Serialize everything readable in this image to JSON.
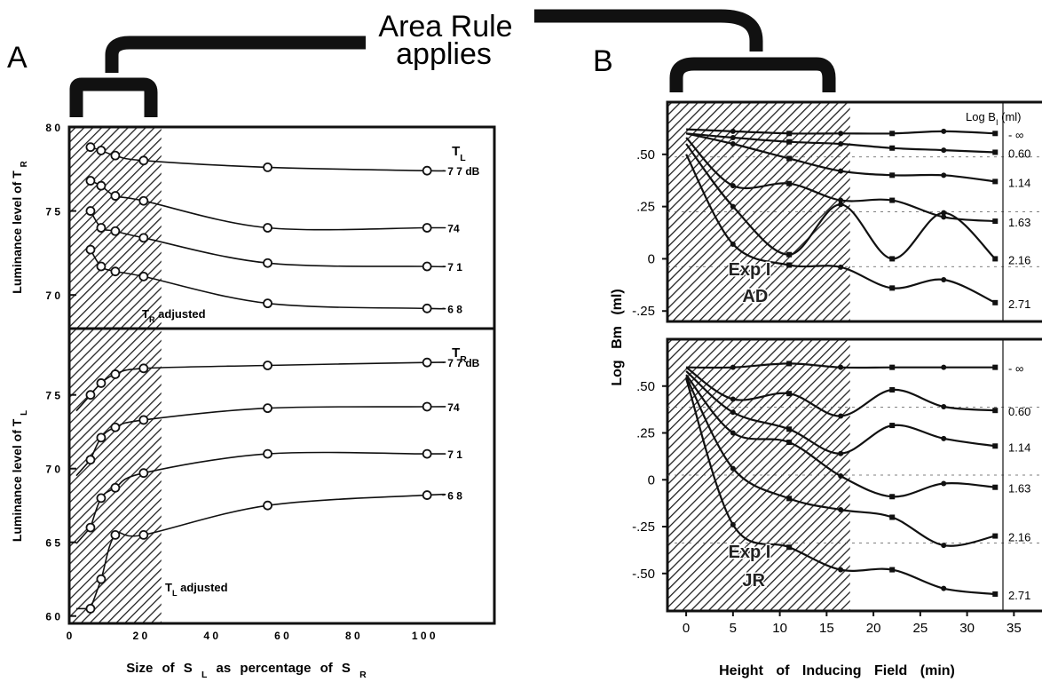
{
  "header": {
    "title_line1": "Area Rule",
    "title_line2": "applies",
    "panel_a": "A",
    "panel_b": "B"
  },
  "chart_data": [
    {
      "panel": "A",
      "type": "line",
      "subplot": "top",
      "ylabel_main": "Luminance level of T",
      "ylabel_sub": "R",
      "xlim": [
        0,
        120
      ],
      "ylim": [
        68,
        80
      ],
      "yticks": [
        70,
        75,
        80
      ],
      "legend_main": "T",
      "legend_sub": "L",
      "annotation_main": "T",
      "annotation_sub": "R",
      "annotation_text": "adjusted",
      "shaded_x": [
        0,
        26
      ],
      "series": [
        {
          "name": "7 7 dB",
          "x": [
            6,
            9,
            13,
            21,
            56,
            101
          ],
          "y": [
            78.8,
            78.6,
            78.3,
            78.0,
            77.6,
            77.4
          ]
        },
        {
          "name": "74",
          "x": [
            6,
            9,
            13,
            21,
            56,
            101
          ],
          "y": [
            76.8,
            76.5,
            75.9,
            75.6,
            74.0,
            74.0
          ]
        },
        {
          "name": "7 1",
          "x": [
            6,
            9,
            13,
            21,
            56,
            101
          ],
          "y": [
            75.0,
            74.0,
            73.8,
            73.4,
            71.9,
            71.7
          ]
        },
        {
          "name": "6 8",
          "x": [
            6,
            9,
            13,
            21,
            56,
            101
          ],
          "y": [
            72.7,
            71.7,
            71.4,
            71.1,
            69.5,
            69.2
          ]
        }
      ]
    },
    {
      "panel": "A",
      "type": "line",
      "subplot": "bottom",
      "ylabel_main": "Luminance level of T",
      "ylabel_sub": "L",
      "xlabel_main": "Size of S",
      "xlabel_sub1": "L",
      "xlabel_mid": "as percentage of S",
      "xlabel_sub2": "R",
      "xlim": [
        0,
        120
      ],
      "ylim": [
        59.5,
        79.5
      ],
      "xticks": [
        0,
        20,
        40,
        60,
        80,
        100
      ],
      "yticks": [
        60,
        65,
        70,
        75
      ],
      "legend_main": "T",
      "legend_sub": "R",
      "annotation_main": "T",
      "annotation_sub": "L",
      "annotation_text": "adjusted",
      "shaded_x": [
        0,
        26
      ],
      "series": [
        {
          "name": "7 7 dB",
          "x": [
            6,
            9,
            13,
            21,
            56,
            101
          ],
          "y": [
            75.0,
            75.8,
            76.4,
            76.8,
            77.0,
            77.2
          ]
        },
        {
          "name": "74",
          "x": [
            6,
            9,
            13,
            21,
            56,
            101
          ],
          "y": [
            70.6,
            72.1,
            72.8,
            73.3,
            74.1,
            74.2
          ]
        },
        {
          "name": "7 1",
          "x": [
            6,
            9,
            13,
            21,
            56,
            101
          ],
          "y": [
            66.0,
            68.0,
            68.7,
            69.7,
            71.0,
            71.0
          ]
        },
        {
          "name": "6 8",
          "x": [
            6,
            9,
            13,
            21,
            56,
            101
          ],
          "y": [
            60.5,
            62.5,
            65.5,
            65.5,
            67.5,
            68.2
          ]
        }
      ]
    },
    {
      "panel": "B",
      "type": "line",
      "subplot": "top",
      "ylabel": "Log Bm (ml)",
      "legend_title_main": "Log B",
      "legend_title_sub": "I",
      "legend_title_unit": "(ml)",
      "annotation_line1": "Exp I",
      "annotation_line2": "AD",
      "xlim": [
        -2,
        38
      ],
      "ylim": [
        -0.3,
        0.75
      ],
      "yticks": [
        ".50",
        ".25",
        "0",
        "-.25"
      ],
      "yvals": [
        0.5,
        0.25,
        0,
        -0.25
      ],
      "shaded_x": [
        -2,
        17.5
      ],
      "series": [
        {
          "name": "- ∞",
          "x": [
            0,
            5,
            11,
            16.5,
            22,
            27.5,
            33
          ],
          "y": [
            0.62,
            0.61,
            0.6,
            0.6,
            0.6,
            0.61,
            0.6
          ]
        },
        {
          "name": "0.60",
          "x": [
            0,
            5,
            11,
            16.5,
            22,
            27.5,
            33
          ],
          "y": [
            0.6,
            0.58,
            0.56,
            0.55,
            0.53,
            0.52,
            0.51
          ]
        },
        {
          "name": "1.14",
          "x": [
            0,
            5,
            11,
            16.5,
            22,
            27.5,
            33
          ],
          "y": [
            0.6,
            0.55,
            0.48,
            0.42,
            0.4,
            0.4,
            0.37
          ]
        },
        {
          "name": "1.63",
          "x": [
            0,
            5,
            11,
            16.5,
            22,
            27.5,
            33
          ],
          "y": [
            0.58,
            0.35,
            0.36,
            0.28,
            0.28,
            0.2,
            0.18
          ]
        },
        {
          "name": "2.16",
          "x": [
            0,
            5,
            11,
            16.5,
            22,
            27.5,
            33
          ],
          "y": [
            0.55,
            0.25,
            0.02,
            0.26,
            0.0,
            0.22,
            0.0
          ]
        },
        {
          "name": "2.71",
          "x": [
            0,
            5,
            11,
            16.5,
            22,
            27.5,
            33
          ],
          "y": [
            0.5,
            0.07,
            -0.03,
            -0.04,
            -0.14,
            -0.1,
            -0.21
          ]
        }
      ]
    },
    {
      "panel": "B",
      "type": "line",
      "subplot": "bottom",
      "ylabel": "Log Bm (ml)",
      "xlabel": "Height of Inducing Field (min)",
      "annotation_line1": "Exp I",
      "annotation_line2": "JR",
      "xlim": [
        -2,
        38
      ],
      "ylim": [
        -0.7,
        0.75
      ],
      "xticks": [
        0,
        5,
        10,
        15,
        20,
        25,
        30,
        35
      ],
      "yticks": [
        ".50",
        ".25",
        "0",
        "-.25",
        "-.50"
      ],
      "yvals": [
        0.5,
        0.25,
        0,
        -0.25,
        -0.5
      ],
      "shaded_x": [
        -2,
        17.5
      ],
      "series": [
        {
          "name": "- ∞",
          "x": [
            0,
            5,
            11,
            16.5,
            22,
            27.5,
            33
          ],
          "y": [
            0.6,
            0.6,
            0.62,
            0.6,
            0.6,
            0.6,
            0.6
          ]
        },
        {
          "name": "0.60",
          "x": [
            0,
            5,
            11,
            16.5,
            22,
            27.5,
            33
          ],
          "y": [
            0.6,
            0.43,
            0.46,
            0.34,
            0.48,
            0.39,
            0.37
          ]
        },
        {
          "name": "1.14",
          "x": [
            0,
            5,
            11,
            16.5,
            22,
            27.5,
            33
          ],
          "y": [
            0.58,
            0.36,
            0.27,
            0.14,
            0.29,
            0.22,
            0.18
          ]
        },
        {
          "name": "1.63",
          "x": [
            0,
            5,
            11,
            16.5,
            22,
            27.5,
            33
          ],
          "y": [
            0.56,
            0.25,
            0.2,
            0.02,
            -0.09,
            -0.02,
            -0.04
          ]
        },
        {
          "name": "2.16",
          "x": [
            0,
            5,
            11,
            16.5,
            22,
            27.5,
            33
          ],
          "y": [
            0.55,
            0.06,
            -0.1,
            -0.16,
            -0.2,
            -0.35,
            -0.3
          ]
        },
        {
          "name": "2.71",
          "x": [
            0,
            5,
            11,
            16.5,
            22,
            27.5,
            33
          ],
          "y": [
            0.54,
            -0.24,
            -0.36,
            -0.48,
            -0.48,
            -0.58,
            -0.61
          ]
        }
      ]
    }
  ]
}
